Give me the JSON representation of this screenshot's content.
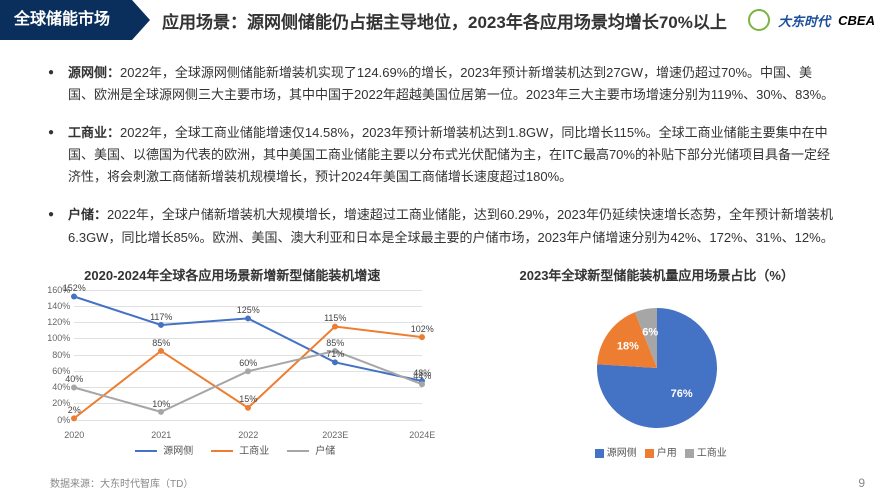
{
  "header": {
    "band": "全球储能市场",
    "title": "应用场景：源网侧储能仍占据主导地位，2023年各应用场景均增长70%以上",
    "logos": {
      "dadong": "大东时代",
      "cbea": "CBEA"
    }
  },
  "bullets": [
    {
      "label": "源网侧：",
      "text": "2022年，全球源网侧储能新增装机实现了124.69%的增长，2023年预计新增装机达到27GW，增速仍超过70%。中国、美国、欧洲是全球源网侧三大主要市场，其中中国于2022年超越美国位居第一位。2023年三大主要市场增速分别为119%、30%、83%。"
    },
    {
      "label": "工商业：",
      "text": "2022年，全球工商业储能增速仅14.58%，2023年预计新增装机达到1.8GW，同比增长115%。全球工商业储能主要集中在中国、美国、以德国为代表的欧洲，其中美国工商业储能主要以分布式光伏配储为主，在ITC最高70%的补贴下部分光储项目具备一定经济性，将会刺激工商储新增装机规模增长，预计2024年美国工商储增长速度超过180%。"
    },
    {
      "label": "户储：",
      "text": "2022年，全球户储新增装机大规模增长，增速超过工商业储能，达到60.29%，2023年仍延续快速增长态势，全年预计新增装机6.3GW，同比增长85%。欧洲、美国、澳大利亚和日本是全球最主要的户储市场，2023年户储增速分别为42%、172%、31%、12%。"
    }
  ],
  "line_chart": {
    "title": "2020-2024年全球各应用场景新增新型储能装机增速",
    "categories": [
      "2020",
      "2021",
      "2022",
      "2023E",
      "2024E"
    ],
    "ylim": [
      0,
      160
    ],
    "ytick_step": 20,
    "grid_color": "#e0e0e0",
    "series": [
      {
        "name": "源网侧",
        "color": "#4472c4",
        "values": [
          152,
          117,
          125,
          71,
          48
        ],
        "labels": [
          "152%",
          "117%",
          "125%",
          "71%",
          "48%"
        ]
      },
      {
        "name": "工商业",
        "color": "#ed7d31",
        "values": [
          2,
          85,
          15,
          115,
          102
        ],
        "labels": [
          "2%",
          "85%",
          "15%",
          "115%",
          "102%"
        ]
      },
      {
        "name": "户储",
        "color": "#a6a6a6",
        "values": [
          40,
          10,
          60,
          85,
          44
        ],
        "labels": [
          "40%",
          "10%",
          "60%",
          "85%",
          "44%"
        ]
      }
    ]
  },
  "pie_chart": {
    "title": "2023年全球新型储能装机量应用场景占比（%）",
    "slices": [
      {
        "name": "源网侧",
        "value": 76,
        "color": "#4472c4"
      },
      {
        "name": "户用",
        "value": 18,
        "color": "#ed7d31"
      },
      {
        "name": "工商业",
        "value": 6,
        "color": "#a6a6a6"
      }
    ]
  },
  "footer": "数据来源：大东时代智库（TD）",
  "page": "9"
}
